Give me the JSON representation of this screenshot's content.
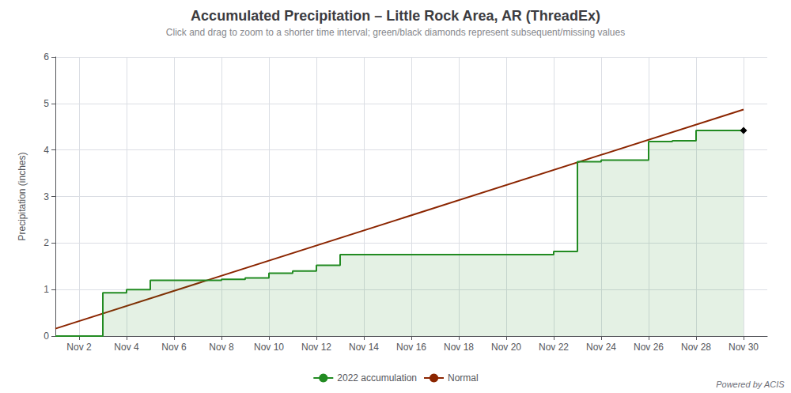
{
  "chart_data": {
    "type": "line",
    "title": "Accumulated Precipitation – Little Rock Area, AR (ThreadEx)",
    "subtitle": "Click and drag to zoom to a shorter time interval; green/black diamonds represent subsequent/missing values",
    "ylabel": "Precipitation (inches)",
    "xlim": [
      1,
      31
    ],
    "xticks": [
      {
        "value": 2,
        "label": "Nov 2"
      },
      {
        "value": 4,
        "label": "Nov 4"
      },
      {
        "value": 6,
        "label": "Nov 6"
      },
      {
        "value": 8,
        "label": "Nov 8"
      },
      {
        "value": 10,
        "label": "Nov 10"
      },
      {
        "value": 12,
        "label": "Nov 12"
      },
      {
        "value": 14,
        "label": "Nov 14"
      },
      {
        "value": 16,
        "label": "Nov 16"
      },
      {
        "value": 18,
        "label": "Nov 18"
      },
      {
        "value": 20,
        "label": "Nov 20"
      },
      {
        "value": 22,
        "label": "Nov 22"
      },
      {
        "value": 24,
        "label": "Nov 24"
      },
      {
        "value": 26,
        "label": "Nov 26"
      },
      {
        "value": 28,
        "label": "Nov 28"
      },
      {
        "value": 30,
        "label": "Nov 30"
      }
    ],
    "ylim": [
      0,
      6
    ],
    "yticks": [
      0,
      1,
      2,
      3,
      4,
      5,
      6
    ],
    "grid": true,
    "legend": "bottom",
    "annotations": [
      "Powered by ACIS"
    ],
    "series": [
      {
        "name": "2022 accumulation",
        "type": "step",
        "color": "#228B22",
        "marker": "diamond",
        "x": [
          1,
          2,
          3,
          4,
          5,
          6,
          7,
          8,
          9,
          10,
          11,
          12,
          13,
          14,
          15,
          16,
          17,
          18,
          19,
          20,
          21,
          22,
          23,
          24,
          25,
          26,
          27,
          28,
          29,
          30
        ],
        "values": [
          0.0,
          0.0,
          0.0,
          0.93,
          1.0,
          1.2,
          1.2,
          1.2,
          1.22,
          1.25,
          1.35,
          1.4,
          1.52,
          1.75,
          1.75,
          1.75,
          1.75,
          1.75,
          1.75,
          1.75,
          1.75,
          1.75,
          1.82,
          3.75,
          3.78,
          3.78,
          4.18,
          4.2,
          4.42,
          4.42
        ]
      },
      {
        "name": "Normal",
        "type": "line",
        "color": "#8B2500",
        "x": [
          1,
          30
        ],
        "values": [
          0.16,
          4.87
        ]
      }
    ]
  }
}
